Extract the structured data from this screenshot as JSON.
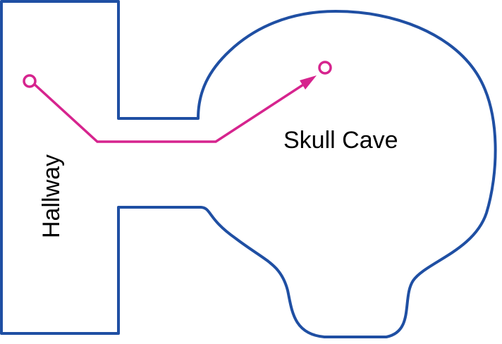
{
  "map": {
    "areas": [
      {
        "id": "hallway",
        "label": "Hallway"
      },
      {
        "id": "skull-cave",
        "label": "Skull Cave"
      }
    ],
    "route": {
      "from": "hallway",
      "to": "skull-cave"
    },
    "colors": {
      "wall_outline": "#1f4fa3",
      "route": "#d6248e",
      "label": "#000000",
      "background": "#ffffff"
    }
  }
}
